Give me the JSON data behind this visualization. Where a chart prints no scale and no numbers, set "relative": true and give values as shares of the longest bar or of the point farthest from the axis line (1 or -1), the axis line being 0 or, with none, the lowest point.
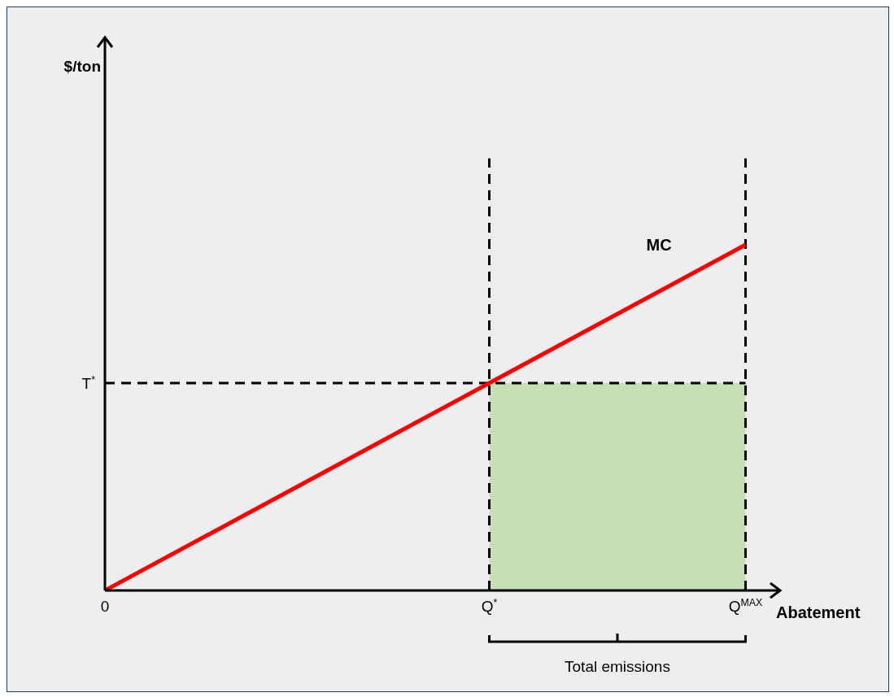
{
  "chart_data": {
    "type": "line",
    "relative": true,
    "xlabel": "Abatement",
    "categories": [
      "0",
      null,
      null,
      "Q$^{*}$",
      null,
      "Q$^{MAX}$"
    ],
    "series": [
      {
        "color": "#ff0000",
        "values": [
          0,
          0.2,
          0.4,
          0.6,
          0.8,
          1
        ]
      }
    ],
    "ref_lines": [
      {
        "axis": "y",
        "value": 0.6,
        "label": "T$^{*}$",
        "line_style": "dashed",
        "color": "#000000"
      },
      {
        "axis": "x",
        "value": "Q$^{*}$",
        "line_style": "dashed",
        "color": "#000000"
      },
      {
        "axis": "x",
        "value": "Q$^{MAX}$",
        "line_style": "dashed",
        "color": "#000000"
      }
    ],
    "bands": [
      {
        "axis": "x",
        "from": "Q$^{*}$",
        "to": "Q$^{MAX}$",
        "color": "#c5e0b4"
      }
    ],
    "annotations": [
      "$/ton",
      "MC",
      "Total emissions"
    ],
    "grid": false,
    "legend": false,
    "marker": "none",
    "line_style": "solid"
  }
}
